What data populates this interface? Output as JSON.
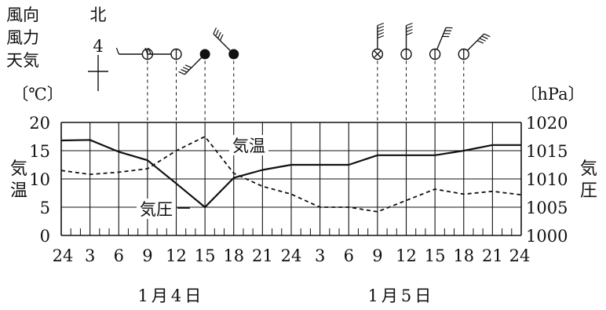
{
  "legend": {
    "wind_direction": "風向",
    "wind_force": "風力",
    "weather": "天気",
    "example_direction": "北",
    "example_force": "4"
  },
  "chart_data": {
    "type": "line",
    "title": "",
    "x": [
      "24",
      "3",
      "6",
      "9",
      "12",
      "15",
      "18",
      "21",
      "24",
      "3",
      "6",
      "9",
      "12",
      "15",
      "18",
      "21",
      "24"
    ],
    "dates": [
      "1月4日",
      "1月5日"
    ],
    "left_axis": {
      "unit": "〔℃〕",
      "label": "気温",
      "ticks": [
        "20",
        "15",
        "10",
        "5",
        "0"
      ],
      "range": [
        0,
        20
      ]
    },
    "right_axis": {
      "unit": "〔hPa〕",
      "label": "気圧",
      "ticks": [
        "1020",
        "1015",
        "1010",
        "1005",
        "1000"
      ],
      "range": [
        1000,
        1020
      ]
    },
    "grid": true,
    "series": [
      {
        "name": "気温",
        "style": "dashed",
        "axis": "left",
        "values": [
          11.5,
          10.8,
          11.2,
          11.8,
          15.0,
          17.5,
          11.0,
          8.7,
          7.3,
          5.0,
          5.0,
          4.2,
          6.2,
          8.2,
          7.3,
          7.8,
          7.2
        ]
      },
      {
        "name": "気圧",
        "style": "solid",
        "axis": "right",
        "values": [
          1016.8,
          1016.9,
          1014.8,
          1013.3,
          1009.2,
          1005.0,
          1010.2,
          1011.6,
          1012.5,
          1012.5,
          1012.5,
          1014.2,
          1014.2,
          1014.2,
          1015.0,
          1016.0,
          1016.0
        ]
      }
    ],
    "weather_obs": [
      {
        "x_index": 3,
        "symbol": "cloudy",
        "wind_dir": "W",
        "wind_force": 1
      },
      {
        "x_index": 4,
        "symbol": "cloudy",
        "wind_dir": "W",
        "wind_force": 2
      },
      {
        "x_index": 5,
        "symbol": "rain",
        "wind_dir": "SW",
        "wind_force": 4
      },
      {
        "x_index": 6,
        "symbol": "rain",
        "wind_dir": "NW",
        "wind_force": 4
      },
      {
        "x_index": 11,
        "symbol": "snow",
        "wind_dir": "N",
        "wind_force": 5
      },
      {
        "x_index": 12,
        "symbol": "cloudy",
        "wind_dir": "N",
        "wind_force": 4
      },
      {
        "x_index": 13,
        "symbol": "cloudy",
        "wind_dir": "NNE",
        "wind_force": 4
      },
      {
        "x_index": 14,
        "symbol": "cloudy",
        "wind_dir": "NE",
        "wind_force": 4
      }
    ]
  }
}
